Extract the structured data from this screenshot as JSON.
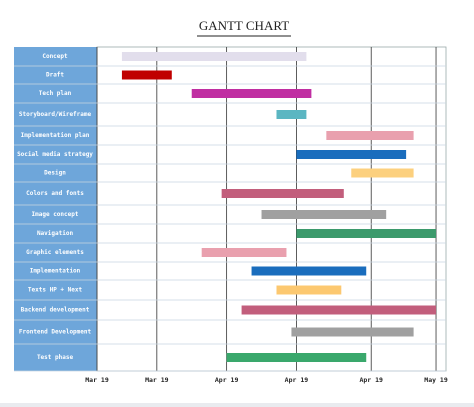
{
  "chart_data": {
    "type": "gantt",
    "title": "GANTT CHART",
    "tasks": [
      {
        "name": "Concept",
        "start": 5,
        "end": 42,
        "color": "#e2deec"
      },
      {
        "name": "Draft",
        "start": 5,
        "end": 15,
        "color": "#c00000"
      },
      {
        "name": "Tech plan",
        "start": 19,
        "end": 43,
        "color": "#c02ea2"
      },
      {
        "name": "Storyboard/Wireframe",
        "start": 36,
        "end": 42,
        "color": "#5bb6c2"
      },
      {
        "name": "Implementation plan",
        "start": 46,
        "end": 63.5,
        "color": "#e9a0ae"
      },
      {
        "name": "Social media strategy",
        "start": 40,
        "end": 62,
        "color": "#1a6dbd"
      },
      {
        "name": "Design",
        "start": 51,
        "end": 63.5,
        "color": "#fcd07e"
      },
      {
        "name": "Colors and fonts",
        "start": 25,
        "end": 49.5,
        "color": "#c25e7c"
      },
      {
        "name": "Image concept",
        "start": 33,
        "end": 58,
        "color": "#a0a0a0"
      },
      {
        "name": "Navigation",
        "start": 40,
        "end": 68,
        "color": "#3c9a6c"
      },
      {
        "name": "Graphic elements",
        "start": 21,
        "end": 38,
        "color": "#e9a0ae"
      },
      {
        "name": "Implementation",
        "start": 31,
        "end": 54,
        "color": "#1a6dbd"
      },
      {
        "name": "Texts HP + Next",
        "start": 36,
        "end": 49,
        "color": "#fcc870"
      },
      {
        "name": "Backend development",
        "start": 29,
        "end": 68,
        "color": "#c25e7c"
      },
      {
        "name": "Frontend Development",
        "start": 39,
        "end": 63.5,
        "color": "#a0a0a0"
      },
      {
        "name": "Test phase",
        "start": 26,
        "end": 54,
        "color": "#3aa86c"
      }
    ],
    "xlim": [
      0,
      70
    ],
    "xticks": [
      {
        "value": 0,
        "label": "Mar 19"
      },
      {
        "value": 12,
        "label": "Mar 19"
      },
      {
        "value": 26,
        "label": "Apr 19"
      },
      {
        "value": 40,
        "label": "Apr 19"
      },
      {
        "value": 55,
        "label": "Apr 19"
      },
      {
        "value": 68,
        "label": "May 19"
      }
    ]
  }
}
